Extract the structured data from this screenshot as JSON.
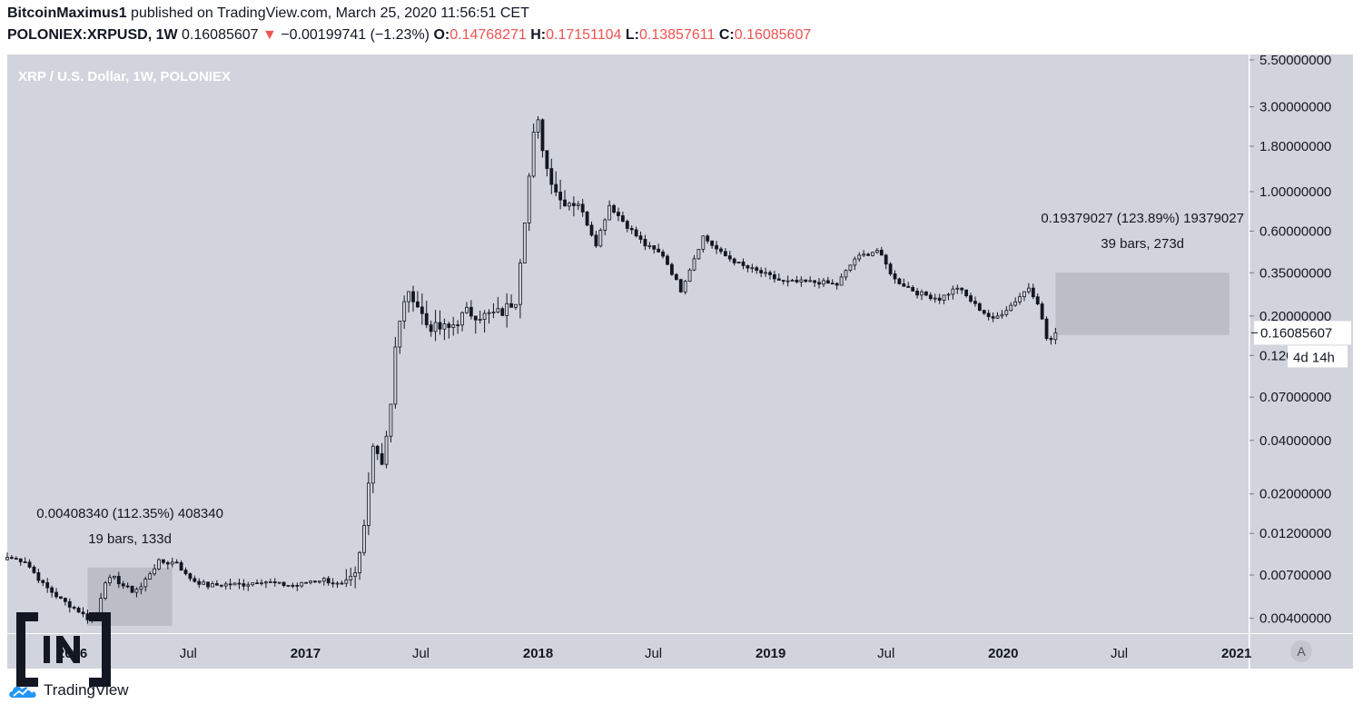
{
  "header": {
    "author": "BitcoinMaximus1",
    "published_text": "published on TradingView.com, March 25, 2020 11:56:51 CET",
    "symbol": "POLONIEX:XRPUSD, 1W",
    "last": "0.16085607",
    "change_arrow": "▼",
    "change": "−0.00199741 (−1.23%)",
    "o_label": "O:",
    "o_value": "0.14768271",
    "h_label": "H:",
    "h_value": "0.17151104",
    "l_label": "L:",
    "l_value": "0.13857611",
    "c_label": "C:",
    "c_value": "0.16085607"
  },
  "footer": {
    "brand": "TradingView",
    "logo_icon": "tradingview-cloud-icon",
    "watermark_icon": "beincrypto-in-logo"
  },
  "axis_mode_button": "A",
  "colors": {
    "background": "#d1d4dc",
    "candle": "#131722",
    "red": "#ef5350",
    "box": "#b2b5be"
  },
  "chart_data": {
    "type": "candlestick",
    "title": "XRP / U.S. Dollar, 1W, POLONIEX",
    "y_scale": "log",
    "ylim": [
      0.0033,
      5.9
    ],
    "y_ticks": [
      "5.50000000",
      "3.00000000",
      "1.80000000",
      "1.00000000",
      "0.60000000",
      "0.35000000",
      "0.20000000",
      "0.12000000",
      "0.07000000",
      "0.04000000",
      "0.02000000",
      "0.01200000",
      "0.00700000",
      "0.00400000"
    ],
    "x_ticks": [
      "2016",
      "Jul",
      "2017",
      "Jul",
      "2018",
      "Jul",
      "2019",
      "Jul",
      "2020",
      "Jul",
      "2021"
    ],
    "x_range": [
      "2015-09-21",
      "2021-01-20"
    ],
    "last_price_label": "0.16085607",
    "countdown_label": "4d 14h",
    "closes": [
      [
        "2015-09-21",
        0.0088
      ],
      [
        "2015-10-19",
        0.0084
      ],
      [
        "2015-11-16",
        0.0062
      ],
      [
        "2015-12-14",
        0.0051
      ],
      [
        "2016-01-11",
        0.0044
      ],
      [
        "2016-01-25",
        0.004
      ],
      [
        "2016-02-08",
        0.0043
      ],
      [
        "2016-02-22",
        0.0065
      ],
      [
        "2016-03-07",
        0.0067
      ],
      [
        "2016-03-21",
        0.0061
      ],
      [
        "2016-04-04",
        0.0057
      ],
      [
        "2016-04-18",
        0.006
      ],
      [
        "2016-05-02",
        0.0072
      ],
      [
        "2016-05-16",
        0.0083
      ],
      [
        "2016-05-30",
        0.0082
      ],
      [
        "2016-06-13",
        0.0083
      ],
      [
        "2016-06-27",
        0.007
      ],
      [
        "2016-07-11",
        0.0065
      ],
      [
        "2016-08-01",
        0.0061
      ],
      [
        "2016-08-29",
        0.0062
      ],
      [
        "2016-09-26",
        0.0062
      ],
      [
        "2016-10-24",
        0.0065
      ],
      [
        "2016-11-21",
        0.0062
      ],
      [
        "2016-12-19",
        0.0061
      ],
      [
        "2017-01-09",
        0.0065
      ],
      [
        "2017-01-30",
        0.0066
      ],
      [
        "2017-02-20",
        0.0062
      ],
      [
        "2017-03-06",
        0.0061
      ],
      [
        "2017-03-20",
        0.0068
      ],
      [
        "2017-03-27",
        0.009
      ],
      [
        "2017-04-03",
        0.013
      ],
      [
        "2017-04-17",
        0.04
      ],
      [
        "2017-05-01",
        0.03
      ],
      [
        "2017-05-15",
        0.065
      ],
      [
        "2017-05-22",
        0.13
      ],
      [
        "2017-06-05",
        0.25
      ],
      [
        "2017-06-19",
        0.26
      ],
      [
        "2017-07-10",
        0.18
      ],
      [
        "2017-07-24",
        0.17
      ],
      [
        "2017-08-14",
        0.17
      ],
      [
        "2017-09-11",
        0.21
      ],
      [
        "2017-10-09",
        0.2
      ],
      [
        "2017-11-06",
        0.21
      ],
      [
        "2017-11-27",
        0.25
      ],
      [
        "2017-12-11",
        0.72
      ],
      [
        "2017-12-25",
        2.05
      ],
      [
        "2018-01-01",
        2.4
      ],
      [
        "2018-01-15",
        1.35
      ],
      [
        "2018-02-05",
        0.9
      ],
      [
        "2018-03-05",
        0.86
      ],
      [
        "2018-04-02",
        0.51
      ],
      [
        "2018-04-23",
        0.84
      ],
      [
        "2018-05-21",
        0.64
      ],
      [
        "2018-06-18",
        0.5
      ],
      [
        "2018-07-16",
        0.44
      ],
      [
        "2018-08-13",
        0.28
      ],
      [
        "2018-09-17",
        0.56
      ],
      [
        "2018-10-15",
        0.45
      ],
      [
        "2018-11-19",
        0.38
      ],
      [
        "2018-12-17",
        0.35
      ],
      [
        "2019-01-21",
        0.31
      ],
      [
        "2019-02-18",
        0.31
      ],
      [
        "2019-03-18",
        0.31
      ],
      [
        "2019-04-15",
        0.3
      ],
      [
        "2019-05-13",
        0.42
      ],
      [
        "2019-06-17",
        0.47
      ],
      [
        "2019-07-15",
        0.32
      ],
      [
        "2019-08-19",
        0.27
      ],
      [
        "2019-09-23",
        0.25
      ],
      [
        "2019-10-21",
        0.29
      ],
      [
        "2019-11-18",
        0.23
      ],
      [
        "2019-12-16",
        0.19
      ],
      [
        "2020-01-13",
        0.23
      ],
      [
        "2020-02-10",
        0.29
      ],
      [
        "2020-02-24",
        0.24
      ],
      [
        "2020-03-09",
        0.15
      ],
      [
        "2020-03-16",
        0.147
      ],
      [
        "2020-03-23",
        0.16085607
      ]
    ],
    "annotations": [
      {
        "label": "0.00408340 (112.35%) 408340",
        "sublabel": "19 bars, 133d",
        "from_date": "2016-01-25",
        "to_date": "2016-06-06",
        "low": 0.00363,
        "high": 0.00771
      },
      {
        "label": "0.19379027 (123.89%) 19379027",
        "sublabel": "39 bars, 273d",
        "from_date": "2020-03-23",
        "to_date": "2020-12-21",
        "low": 0.1564,
        "high": 0.3502
      }
    ]
  }
}
